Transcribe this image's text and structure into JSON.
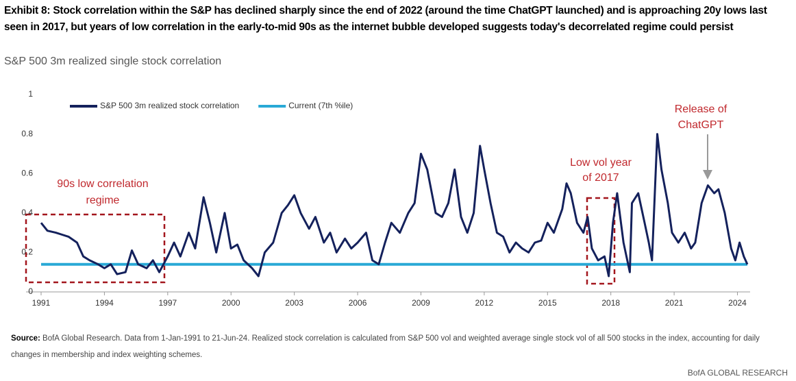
{
  "chart_data": {
    "type": "line",
    "title": "Exhibit 8: Stock correlation within the S&P has declined sharply since the end of 2022 (around the time ChatGPT launched) and is approaching 20y lows last seen in 2017, but years of low correlation in the early-to-mid 90s as the internet bubble developed suggests today's decorrelated regime could persist",
    "subtitle": "S&P 500 3m realized single stock correlation",
    "source_label": "Source:",
    "source": "BofA Global Research. Data from 1-Jan-1991 to 21-Jun-24. Realized stock correlation is calculated from S&P 500 vol and weighted average single stock vol of all 500 stocks in the index, accounting for daily changes in membership and index weighting schemes.",
    "footer": "BofA GLOBAL RESEARCH",
    "annotations": [
      {
        "lines": [
          "90s low correlation",
          "regime"
        ]
      },
      {
        "lines": [
          "Low vol year",
          "of 2017"
        ]
      },
      {
        "lines": [
          "Release of",
          "ChatGPT"
        ]
      }
    ],
    "legend": "upper left",
    "grid": false,
    "xlim": [
      1991,
      2024.6
    ],
    "xticks": [
      1991,
      1994,
      1997,
      2000,
      2003,
      2006,
      2009,
      2012,
      2015,
      2018,
      2021,
      2024
    ],
    "ylim": [
      0,
      1
    ],
    "yticks": [
      0,
      0.2,
      0.4,
      0.6,
      0.8,
      1
    ],
    "series": [
      {
        "name": "S&P 500 3m realized stock correlation",
        "color": "#14215c",
        "x": [
          1991.0,
          1991.3,
          1991.7,
          1992.0,
          1992.3,
          1992.7,
          1993.0,
          1993.3,
          1993.7,
          1994.0,
          1994.3,
          1994.6,
          1995.0,
          1995.3,
          1995.6,
          1996.0,
          1996.3,
          1996.6,
          1997.0,
          1997.3,
          1997.6,
          1998.0,
          1998.3,
          1998.7,
          1999.0,
          1999.3,
          1999.7,
          2000.0,
          2000.3,
          2000.6,
          2001.0,
          2001.3,
          2001.6,
          2002.0,
          2002.4,
          2002.7,
          2003.0,
          2003.3,
          2003.7,
          2004.0,
          2004.4,
          2004.7,
          2005.0,
          2005.4,
          2005.7,
          2006.0,
          2006.4,
          2006.7,
          2007.0,
          2007.3,
          2007.6,
          2008.0,
          2008.4,
          2008.7,
          2009.0,
          2009.3,
          2009.7,
          2010.0,
          2010.3,
          2010.6,
          2010.9,
          2011.2,
          2011.5,
          2011.8,
          2012.0,
          2012.3,
          2012.6,
          2012.9,
          2013.2,
          2013.5,
          2013.8,
          2014.1,
          2014.4,
          2014.7,
          2015.0,
          2015.3,
          2015.7,
          2015.9,
          2016.1,
          2016.4,
          2016.7,
          2016.9,
          2017.1,
          2017.4,
          2017.7,
          2017.9,
          2018.1,
          2018.3,
          2018.6,
          2018.9,
          2019.0,
          2019.3,
          2019.6,
          2019.8,
          2019.95,
          2020.2,
          2020.4,
          2020.7,
          2020.9,
          2021.2,
          2021.5,
          2021.8,
          2022.0,
          2022.3,
          2022.6,
          2022.9,
          2023.1,
          2023.4,
          2023.7,
          2023.9,
          2024.1,
          2024.3,
          2024.47
        ],
        "values": [
          0.35,
          0.31,
          0.3,
          0.29,
          0.28,
          0.25,
          0.18,
          0.16,
          0.14,
          0.12,
          0.14,
          0.09,
          0.1,
          0.21,
          0.14,
          0.12,
          0.16,
          0.1,
          0.18,
          0.25,
          0.18,
          0.3,
          0.22,
          0.48,
          0.35,
          0.2,
          0.4,
          0.22,
          0.24,
          0.16,
          0.12,
          0.08,
          0.2,
          0.25,
          0.4,
          0.44,
          0.49,
          0.4,
          0.32,
          0.38,
          0.25,
          0.3,
          0.2,
          0.27,
          0.22,
          0.25,
          0.3,
          0.16,
          0.14,
          0.25,
          0.35,
          0.3,
          0.4,
          0.45,
          0.7,
          0.62,
          0.4,
          0.38,
          0.45,
          0.62,
          0.38,
          0.3,
          0.4,
          0.74,
          0.62,
          0.45,
          0.3,
          0.28,
          0.2,
          0.25,
          0.22,
          0.2,
          0.25,
          0.26,
          0.35,
          0.3,
          0.42,
          0.55,
          0.5,
          0.35,
          0.3,
          0.38,
          0.22,
          0.16,
          0.18,
          0.08,
          0.35,
          0.5,
          0.25,
          0.1,
          0.45,
          0.5,
          0.35,
          0.25,
          0.16,
          0.8,
          0.62,
          0.45,
          0.3,
          0.25,
          0.3,
          0.22,
          0.25,
          0.45,
          0.54,
          0.5,
          0.52,
          0.4,
          0.22,
          0.16,
          0.25,
          0.18,
          0.14
        ]
      },
      {
        "name": "Current (7th %ile)",
        "color": "#29a9d6",
        "x": [
          1991,
          2024.47
        ],
        "values": [
          0.14,
          0.14
        ]
      }
    ]
  }
}
